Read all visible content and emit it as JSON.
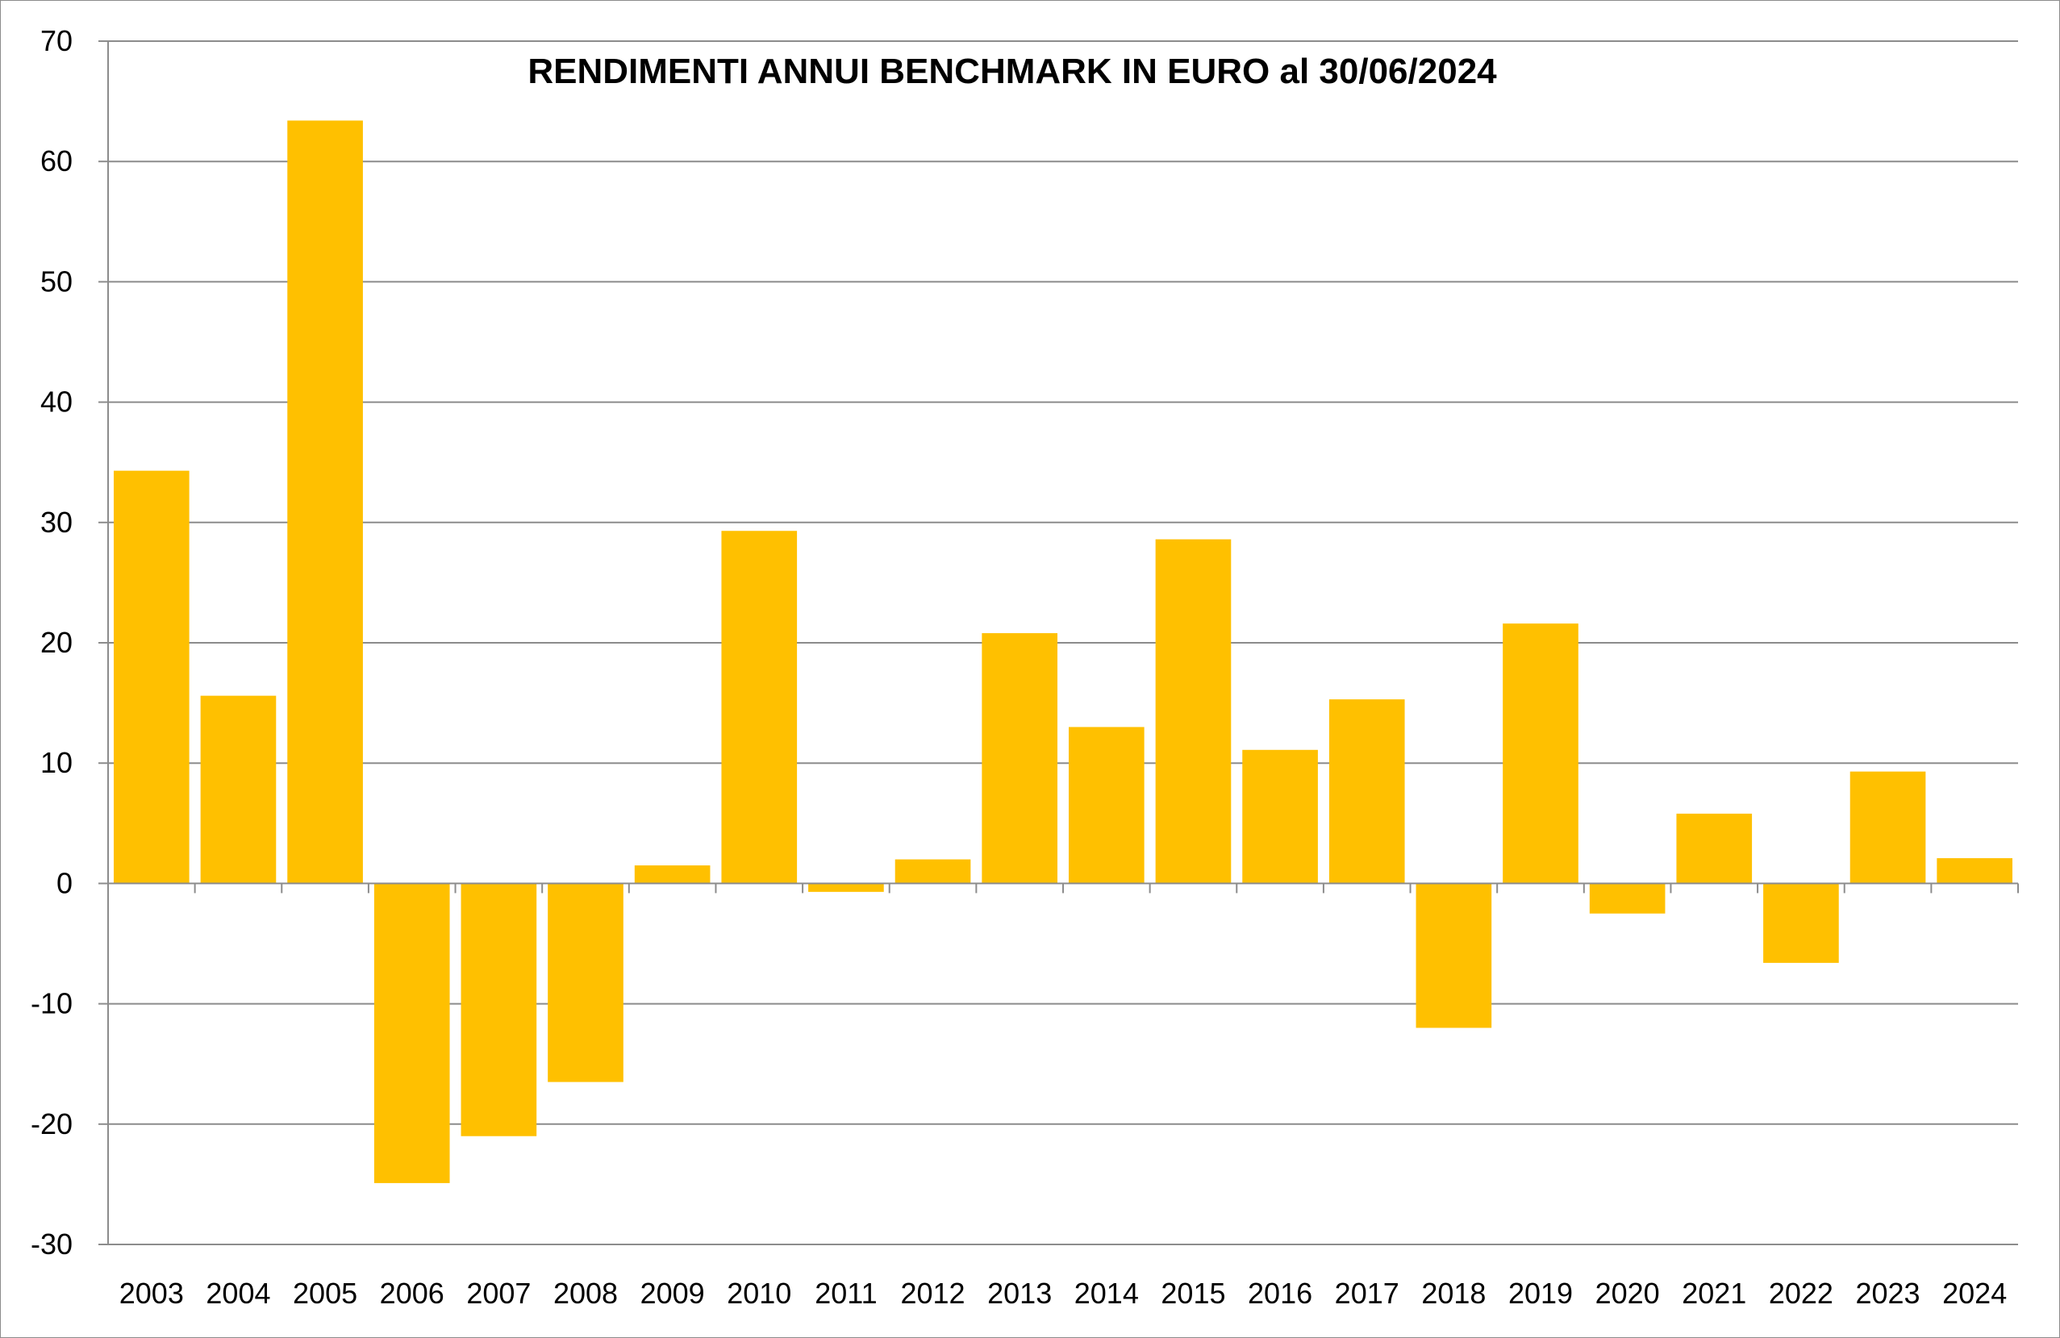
{
  "chart_data": {
    "type": "bar",
    "title": "RENDIMENTI ANNUI BENCHMARK IN EURO al 30/06/2024",
    "xlabel": "",
    "ylabel": "",
    "categories": [
      "2003",
      "2004",
      "2005",
      "2006",
      "2007",
      "2008",
      "2009",
      "2010",
      "2011",
      "2012",
      "2013",
      "2014",
      "2015",
      "2016",
      "2017",
      "2018",
      "2019",
      "2020",
      "2021",
      "2022",
      "2023",
      "2024"
    ],
    "values": [
      34.3,
      15.6,
      63.4,
      -24.9,
      -21.0,
      -16.5,
      1.5,
      29.3,
      -0.7,
      2.0,
      20.8,
      13.0,
      28.6,
      11.1,
      15.3,
      -12.0,
      21.6,
      -2.5,
      5.8,
      -6.6,
      9.3,
      2.1
    ],
    "ylim": [
      -30,
      70
    ],
    "yticks": [
      "70",
      "60",
      "50",
      "40",
      "30",
      "20",
      "10",
      "0",
      "-10",
      "-20",
      "-30"
    ],
    "grid": true,
    "legend": "none",
    "colors": {
      "bar": "#FFC000",
      "grid": "#8C8C8C",
      "text": "#000000"
    }
  }
}
